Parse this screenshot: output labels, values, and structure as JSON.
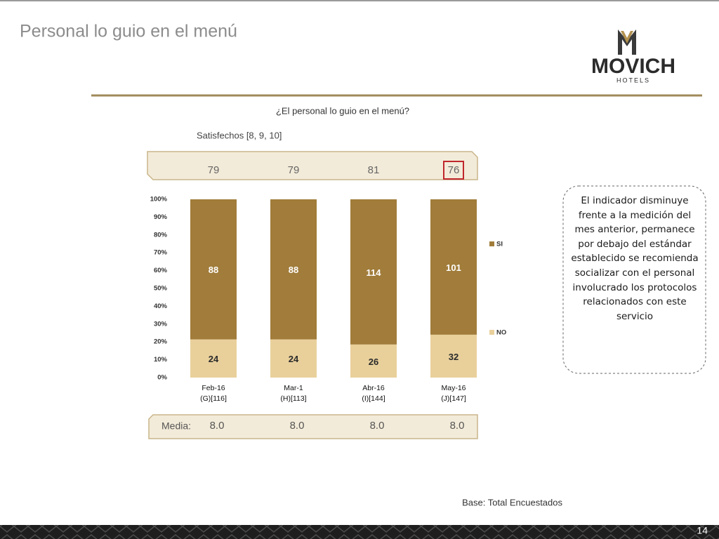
{
  "header": {
    "title": "Personal lo guio en el menú",
    "logo_name": "MOVICH",
    "logo_sub": "HOTELS"
  },
  "chart_data": {
    "type": "bar",
    "stacking": "percent",
    "title": "¿El personal lo guio en el menú?",
    "categories": [
      "Feb-16",
      "Mar-1",
      "Abr-16",
      "May-16"
    ],
    "bases": [
      "(G)[116]",
      "(H)[113]",
      "(I)[144]",
      "(J)[147]"
    ],
    "series": [
      {
        "name": "NO",
        "color": "#e9d09b",
        "label_color": "#2a2a2a",
        "values": [
          24,
          24,
          26,
          32
        ]
      },
      {
        "name": "SI",
        "color": "#a17c3a",
        "label_color": "#ffffff",
        "values": [
          88,
          88,
          114,
          101
        ]
      }
    ],
    "ylim": [
      0,
      100
    ],
    "yticks": [
      {
        "value": 0,
        "label": "0%"
      },
      {
        "value": 10,
        "label": "10%"
      },
      {
        "value": 20,
        "label": "20%"
      },
      {
        "value": 30,
        "label": "30%"
      },
      {
        "value": 40,
        "label": "40%"
      },
      {
        "value": 50,
        "label": "50%"
      },
      {
        "value": 60,
        "label": "60%"
      },
      {
        "value": 70,
        "label": "70%"
      },
      {
        "value": 80,
        "label": "80%"
      },
      {
        "value": 90,
        "label": "90%"
      },
      {
        "value": 100,
        "label": "100%"
      }
    ],
    "legend": "right",
    "satisfied_label": "Satisfechos [8, 9, 10]",
    "satisfied": [
      79,
      79,
      81,
      76
    ],
    "highlight_index": 3,
    "media_label": "Media:",
    "media": [
      "8.0",
      "8.0",
      "8.0",
      "8.0"
    ]
  },
  "note": "El indicador disminuye frente a la medición del mes anterior, permanece por debajo del estándar establecido se recomienda socializar con el personal involucrado los protocolos relacionados con este servicio",
  "base": "Base: Total Encuestados",
  "page_number": "14"
}
